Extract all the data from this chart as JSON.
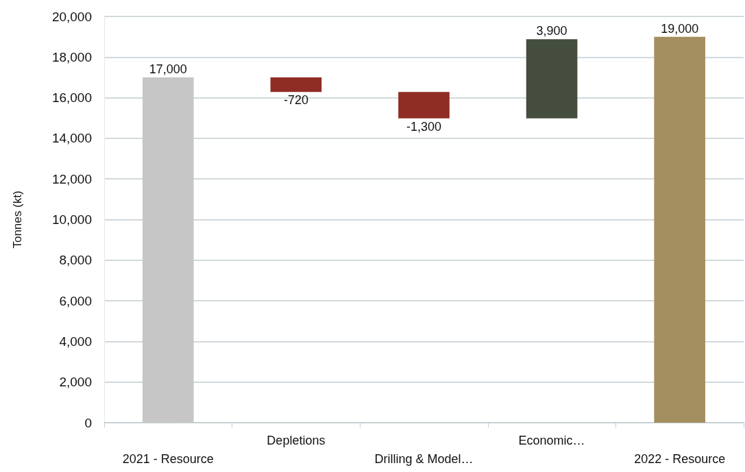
{
  "chart_data": {
    "type": "bar",
    "categories": [
      "2021 - Resource",
      "Depletions",
      "Drilling & Model…",
      "Economic…",
      "2022 - Resource"
    ],
    "values": [
      17000,
      -720,
      -1300,
      3900,
      19000
    ],
    "base": [
      0,
      17000,
      16280,
      14980,
      0
    ],
    "value_labels": [
      "17,000",
      "-720",
      "-1,300",
      "3,900",
      "19,000"
    ],
    "colors": [
      "#c6c6c6",
      "#8f2c24",
      "#8f2c24",
      "#444d3e",
      "#a48f5f"
    ],
    "ylabel": "Tonnes (kt)",
    "ylim": [
      0,
      20000
    ],
    "yticks": [
      0,
      {
        "value": 2000,
        "label": "2,000"
      },
      {
        "value": 4000,
        "label": "4,000"
      },
      {
        "value": 6000,
        "label": "6,000"
      },
      {
        "value": 8000,
        "label": "8,000"
      },
      {
        "value": 10000,
        "label": "10,000"
      },
      {
        "value": 12000,
        "label": "12,000"
      },
      {
        "value": 14000,
        "label": "14,000"
      },
      {
        "value": 16000,
        "label": "16,000"
      },
      {
        "value": 18000,
        "label": "18,000"
      },
      {
        "value": 20000,
        "label": "20,000"
      }
    ],
    "grid": "y"
  }
}
